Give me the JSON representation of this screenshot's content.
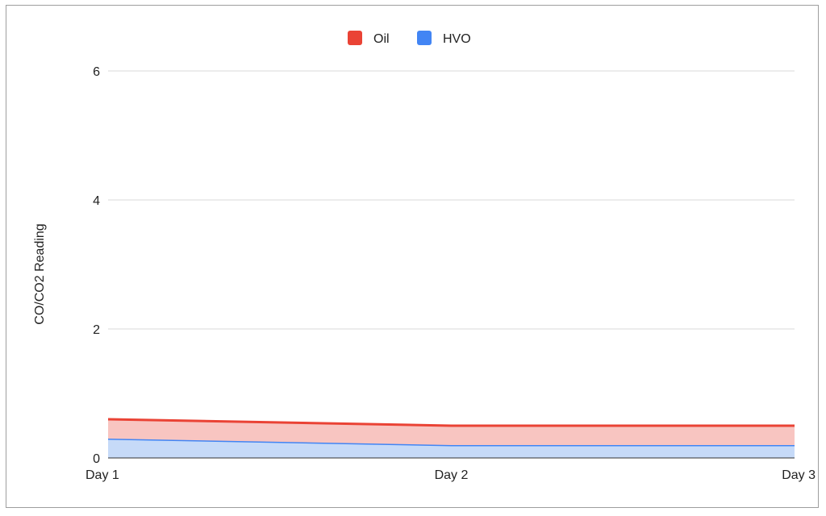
{
  "chart_data": {
    "type": "area",
    "stacked": true,
    "categories": [
      "Day 1",
      "Day 2",
      "Day 3"
    ],
    "series": [
      {
        "name": "HVO",
        "values": [
          0.3,
          0.2,
          0.2
        ],
        "color": "#4285f4",
        "fill": "#c6daf8"
      },
      {
        "name": "Oil",
        "values": [
          0.3,
          0.3,
          0.3
        ],
        "color": "#ea4335",
        "fill": "#f8c5c1"
      }
    ],
    "legend_order": [
      "Oil",
      "HVO"
    ],
    "legend_position": "top-center",
    "ylabel": "CO/CO2 Reading",
    "xlabel": "",
    "ylim": [
      0,
      6
    ],
    "yticks": [
      "0",
      "2",
      "4",
      "6"
    ],
    "grid": true
  }
}
